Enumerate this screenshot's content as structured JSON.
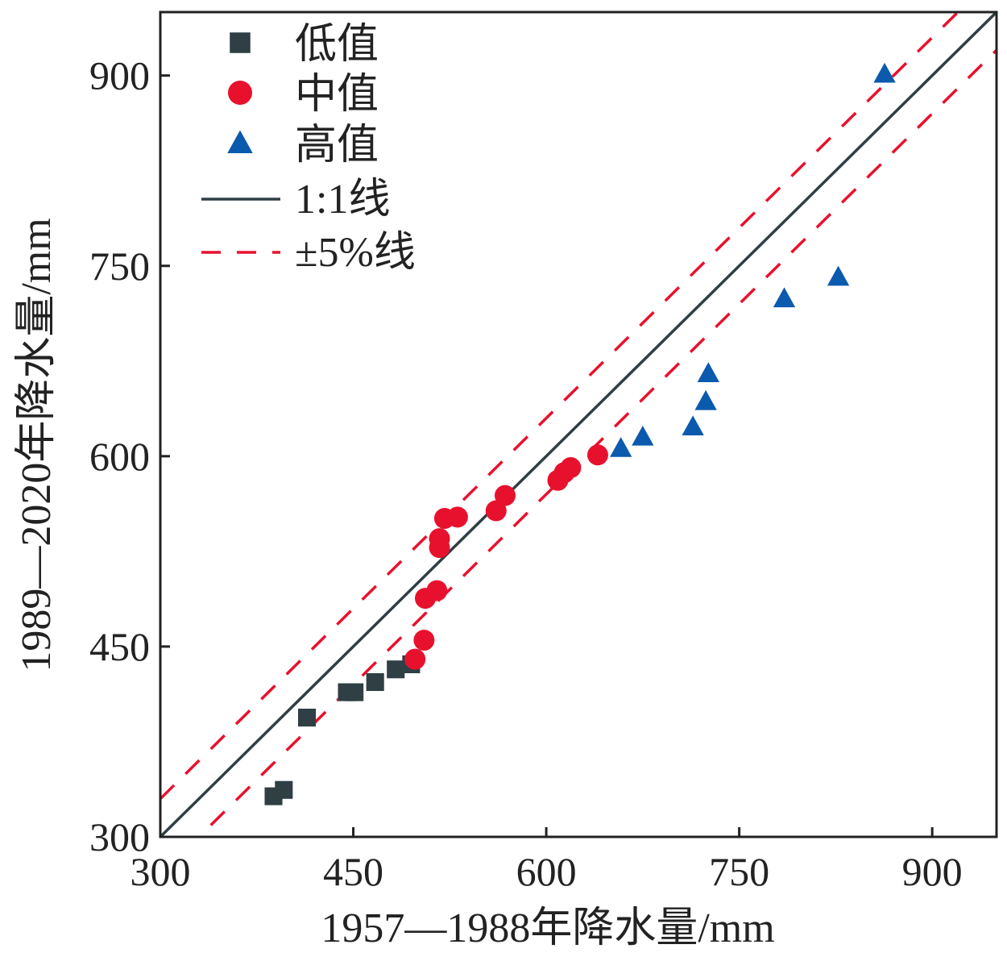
{
  "chart_data": {
    "type": "scatter",
    "title": "",
    "xlabel": "1957—1988年降水量/mm",
    "ylabel": "1989—2020年降水量/mm",
    "xlim": [
      300,
      950
    ],
    "ylim": [
      300,
      950
    ],
    "xticks": [
      300,
      450,
      600,
      750,
      900
    ],
    "yticks": [
      300,
      450,
      600,
      750,
      900
    ],
    "xtick_labels": [
      "300",
      "450",
      "600",
      "750",
      "900"
    ],
    "ytick_labels": [
      "300",
      "450",
      "600",
      "750",
      "900"
    ],
    "grid": false,
    "legend_position": "top-left",
    "series": [
      {
        "name": "低值",
        "marker": "square",
        "color": "#2f3f44",
        "points": [
          [
            388,
            332
          ],
          [
            396,
            337
          ],
          [
            414,
            394
          ],
          [
            445,
            414
          ],
          [
            451,
            414
          ],
          [
            467,
            422
          ],
          [
            483,
            432
          ],
          [
            495,
            436
          ]
        ]
      },
      {
        "name": "中值",
        "marker": "circle",
        "color": "#e8112d",
        "points": [
          [
            498,
            440
          ],
          [
            505,
            455
          ],
          [
            506,
            488
          ],
          [
            515,
            494
          ],
          [
            517,
            528
          ],
          [
            517,
            535
          ],
          [
            521,
            551
          ],
          [
            531,
            552
          ],
          [
            561,
            557
          ],
          [
            568,
            569
          ],
          [
            609,
            581
          ],
          [
            614,
            587
          ],
          [
            619,
            591
          ],
          [
            640,
            601
          ]
        ]
      },
      {
        "name": "高值",
        "marker": "triangle",
        "color": "#0a5aad",
        "points": [
          [
            658,
            606
          ],
          [
            675,
            615
          ],
          [
            714,
            623
          ],
          [
            724,
            643
          ],
          [
            726,
            665
          ],
          [
            785,
            724
          ],
          [
            827,
            741
          ],
          [
            863,
            901
          ]
        ]
      }
    ],
    "lines": [
      {
        "name": "1:1线",
        "style": "solid",
        "color": "#2f3f44",
        "offset": 0
      },
      {
        "name": "±5%线",
        "style": "dashed",
        "color": "#e8112d",
        "offsets": [
          30,
          -30
        ]
      }
    ]
  }
}
